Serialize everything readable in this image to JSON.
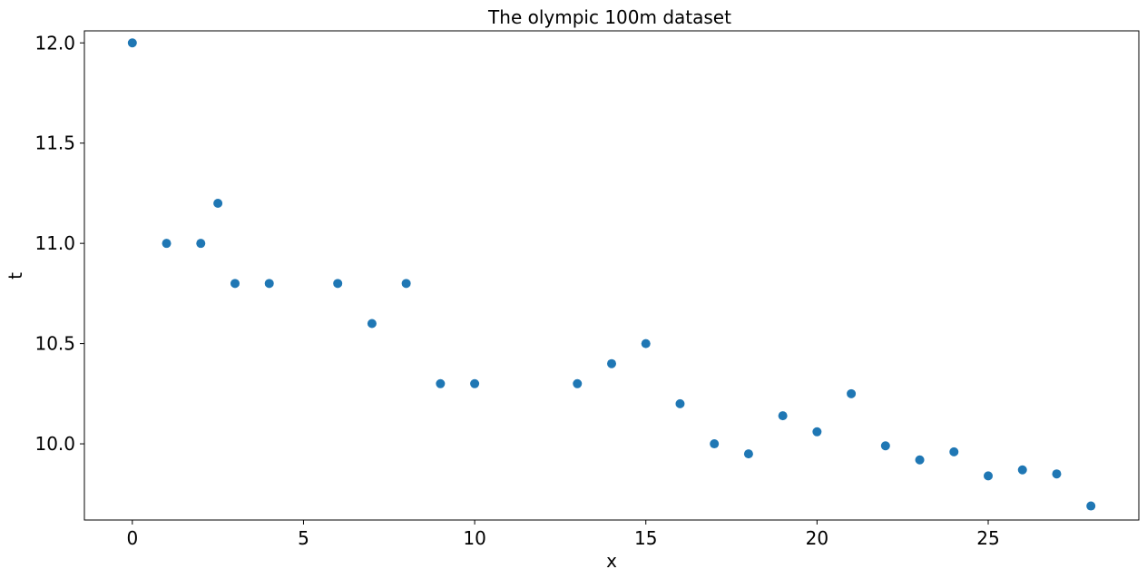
{
  "chart_data": {
    "type": "scatter",
    "title": "The olympic 100m dataset",
    "xlabel": "x",
    "ylabel": "t",
    "xlim": [
      -1.4,
      29.4
    ],
    "ylim": [
      9.62,
      12.06
    ],
    "xticks": [
      0,
      5,
      10,
      15,
      20,
      25
    ],
    "yticks": [
      10.0,
      10.5,
      11.0,
      11.5,
      12.0
    ],
    "xtick_labels": [
      "0",
      "5",
      "10",
      "15",
      "20",
      "25"
    ],
    "ytick_labels": [
      "10.0",
      "10.5",
      "11.0",
      "11.5",
      "12.0"
    ],
    "grid": false,
    "marker_color": "#1f77b4",
    "points": [
      {
        "x": 0,
        "y": 12.0
      },
      {
        "x": 1,
        "y": 11.0
      },
      {
        "x": 2,
        "y": 11.0
      },
      {
        "x": 2.5,
        "y": 11.2
      },
      {
        "x": 3,
        "y": 10.8
      },
      {
        "x": 4,
        "y": 10.8
      },
      {
        "x": 6,
        "y": 10.8
      },
      {
        "x": 7,
        "y": 10.6
      },
      {
        "x": 8,
        "y": 10.8
      },
      {
        "x": 9,
        "y": 10.3
      },
      {
        "x": 10,
        "y": 10.3
      },
      {
        "x": 13,
        "y": 10.3
      },
      {
        "x": 14,
        "y": 10.4
      },
      {
        "x": 15,
        "y": 10.5
      },
      {
        "x": 16,
        "y": 10.2
      },
      {
        "x": 17,
        "y": 10.0
      },
      {
        "x": 18,
        "y": 9.95
      },
      {
        "x": 19,
        "y": 10.14
      },
      {
        "x": 20,
        "y": 10.06
      },
      {
        "x": 21,
        "y": 10.25
      },
      {
        "x": 22,
        "y": 9.99
      },
      {
        "x": 23,
        "y": 9.92
      },
      {
        "x": 24,
        "y": 9.96
      },
      {
        "x": 25,
        "y": 9.84
      },
      {
        "x": 26,
        "y": 9.87
      },
      {
        "x": 27,
        "y": 9.85
      },
      {
        "x": 28,
        "y": 9.69
      }
    ]
  }
}
